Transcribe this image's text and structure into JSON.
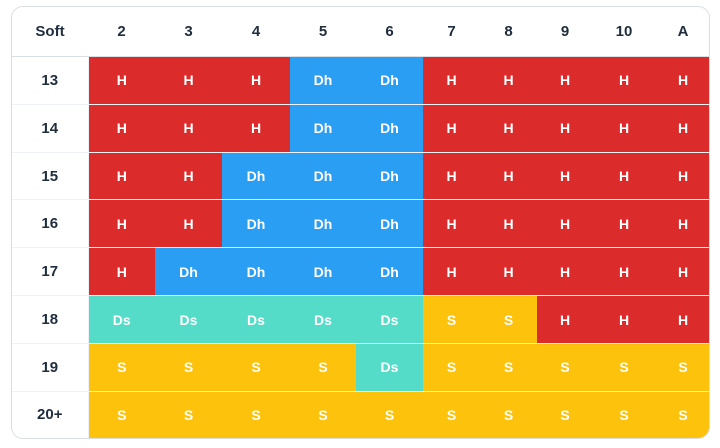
{
  "header": {
    "corner": "Soft",
    "dealer_cards": [
      "2",
      "3",
      "4",
      "5",
      "6",
      "7",
      "8",
      "9",
      "10",
      "A"
    ]
  },
  "rows": [
    {
      "hand": "13",
      "actions": [
        "H",
        "H",
        "H",
        "Dh",
        "Dh",
        "H",
        "H",
        "H",
        "H",
        "H"
      ]
    },
    {
      "hand": "14",
      "actions": [
        "H",
        "H",
        "H",
        "Dh",
        "Dh",
        "H",
        "H",
        "H",
        "H",
        "H"
      ]
    },
    {
      "hand": "15",
      "actions": [
        "H",
        "H",
        "Dh",
        "Dh",
        "Dh",
        "H",
        "H",
        "H",
        "H",
        "H"
      ]
    },
    {
      "hand": "16",
      "actions": [
        "H",
        "H",
        "Dh",
        "Dh",
        "Dh",
        "H",
        "H",
        "H",
        "H",
        "H"
      ]
    },
    {
      "hand": "17",
      "actions": [
        "H",
        "Dh",
        "Dh",
        "Dh",
        "Dh",
        "H",
        "H",
        "H",
        "H",
        "H"
      ]
    },
    {
      "hand": "18",
      "actions": [
        "Ds",
        "Ds",
        "Ds",
        "Ds",
        "Ds",
        "S",
        "S",
        "H",
        "H",
        "H"
      ]
    },
    {
      "hand": "19",
      "actions": [
        "S",
        "S",
        "S",
        "S",
        "Ds",
        "S",
        "S",
        "S",
        "S",
        "S"
      ]
    },
    {
      "hand": "20+",
      "actions": [
        "S",
        "S",
        "S",
        "S",
        "S",
        "S",
        "S",
        "S",
        "S",
        "S"
      ]
    }
  ],
  "colors": {
    "H": "#dc2b2b",
    "Dh": "#2a9ef3",
    "Ds": "#55dcc8",
    "S": "#fcc20c",
    "header_text": "#1f2d3d",
    "border": "#d9dee5"
  }
}
